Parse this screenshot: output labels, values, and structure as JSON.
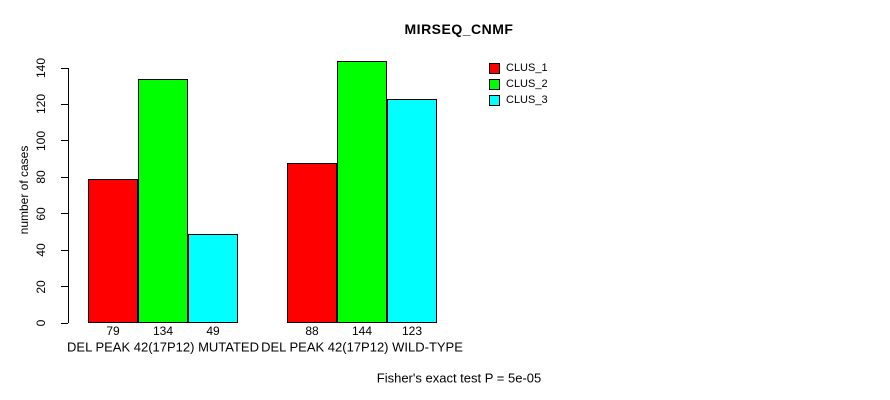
{
  "chart_data": {
    "type": "bar",
    "title": "MIRSEQ_CNMF",
    "ylabel": "number of cases",
    "xlabel": "",
    "categories": [
      "DEL PEAK 42(17P12) MUTATED",
      "DEL PEAK 42(17P12) WILD-TYPE"
    ],
    "series": [
      {
        "name": "CLUS_1",
        "color": "#ff0000",
        "values": [
          79,
          88
        ]
      },
      {
        "name": "CLUS_2",
        "color": "#00ff00",
        "values": [
          134,
          144
        ]
      },
      {
        "name": "CLUS_3",
        "color": "#00ffff",
        "values": [
          49,
          123
        ]
      }
    ],
    "bar_value_labels": [
      [
        79,
        134,
        49
      ],
      [
        88,
        144,
        123
      ]
    ],
    "yticks": [
      0,
      20,
      40,
      60,
      80,
      100,
      120,
      140
    ],
    "ylim": [
      0,
      140
    ],
    "grid": false,
    "legend": {
      "entries": [
        "CLUS_1",
        "CLUS_2",
        "CLUS_3"
      ],
      "position": "top-right"
    },
    "footnote": "Fisher's exact test P = 5e-05"
  },
  "colors": {
    "background": "#ffffff",
    "text": "#000000",
    "bar_border": "#000000",
    "axis": "#000000"
  }
}
